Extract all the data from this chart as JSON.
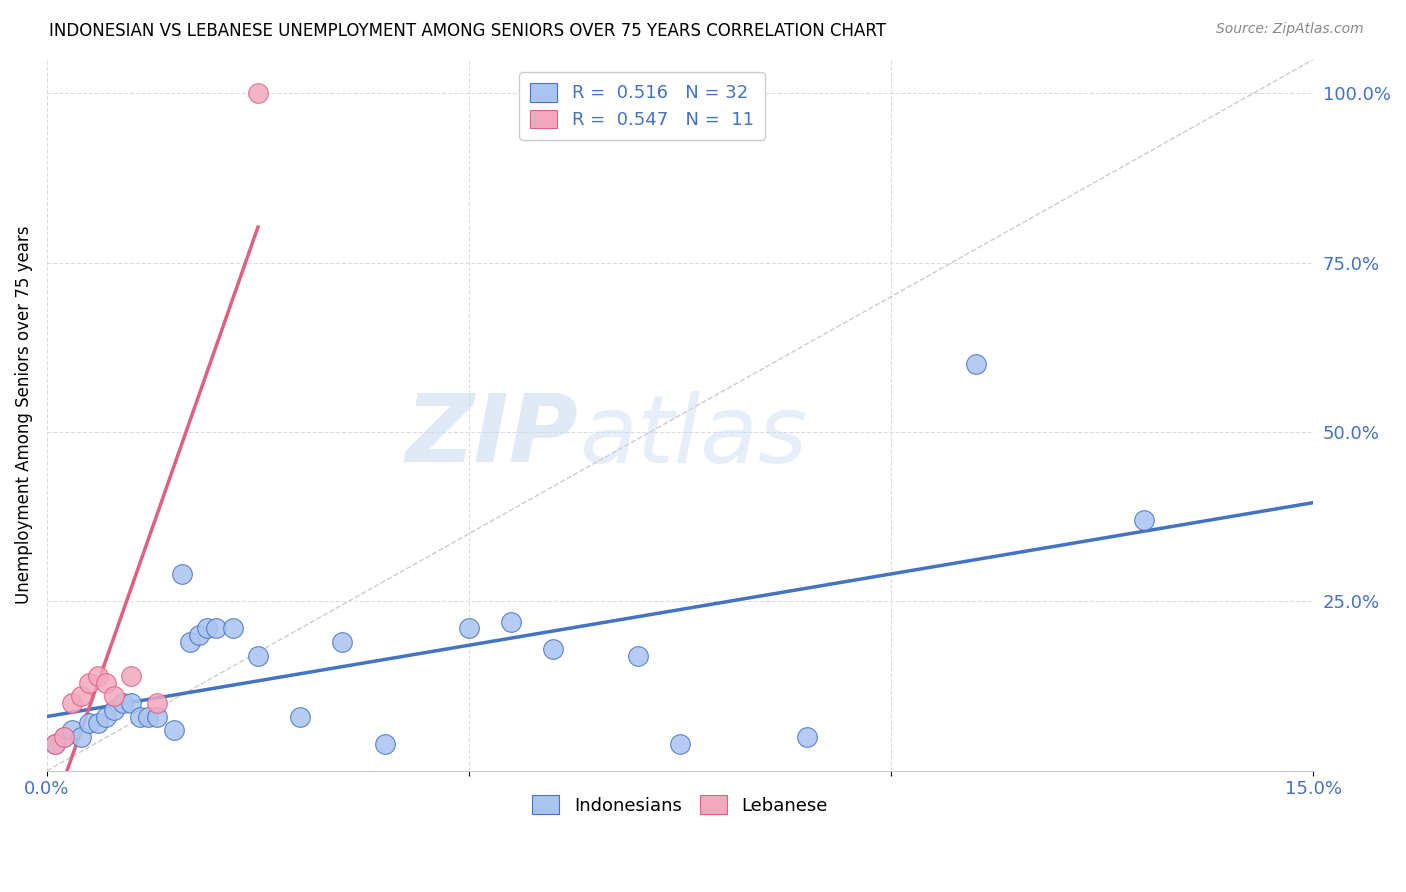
{
  "title": "INDONESIAN VS LEBANESE UNEMPLOYMENT AMONG SENIORS OVER 75 YEARS CORRELATION CHART",
  "source": "Source: ZipAtlas.com",
  "ylabel": "Unemployment Among Seniors over 75 years",
  "xlim": [
    0.0,
    0.15
  ],
  "ylim": [
    0.0,
    1.05
  ],
  "xticks": [
    0.0,
    0.05,
    0.1,
    0.15
  ],
  "xticklabels": [
    "0.0%",
    "",
    "",
    "15.0%"
  ],
  "yticks_right": [
    0.0,
    0.25,
    0.5,
    0.75,
    1.0
  ],
  "yticklabels_right": [
    "",
    "25.0%",
    "50.0%",
    "75.0%",
    "100.0%"
  ],
  "indonesian_x": [
    0.001,
    0.002,
    0.003,
    0.004,
    0.005,
    0.006,
    0.007,
    0.008,
    0.009,
    0.01,
    0.011,
    0.012,
    0.013,
    0.015,
    0.016,
    0.017,
    0.018,
    0.019,
    0.02,
    0.022,
    0.025,
    0.03,
    0.035,
    0.04,
    0.05,
    0.055,
    0.06,
    0.07,
    0.075,
    0.09,
    0.11,
    0.13
  ],
  "indonesian_y": [
    0.04,
    0.05,
    0.06,
    0.05,
    0.07,
    0.07,
    0.08,
    0.09,
    0.1,
    0.1,
    0.08,
    0.08,
    0.08,
    0.06,
    0.29,
    0.19,
    0.2,
    0.21,
    0.21,
    0.21,
    0.17,
    0.08,
    0.19,
    0.04,
    0.21,
    0.22,
    0.18,
    0.17,
    0.04,
    0.05,
    0.6,
    0.37
  ],
  "lebanese_x": [
    0.001,
    0.002,
    0.003,
    0.004,
    0.005,
    0.006,
    0.007,
    0.008,
    0.01,
    0.013,
    0.025
  ],
  "lebanese_y": [
    0.04,
    0.05,
    0.1,
    0.11,
    0.13,
    0.14,
    0.13,
    0.11,
    0.14,
    0.1,
    1.0
  ],
  "indonesian_color": "#aac4f0",
  "lebanese_color": "#f4a8c0",
  "indonesian_line_color": "#4472c4",
  "lebanese_line_color": "#e06080",
  "diagonal_color": "#cccccc",
  "r_indonesian": 0.516,
  "n_indonesian": 32,
  "r_lebanese": 0.547,
  "n_lebanese": 11,
  "watermark_zip": "ZIP",
  "watermark_atlas": "atlas",
  "background_color": "#ffffff",
  "grid_color": "#dddddd"
}
